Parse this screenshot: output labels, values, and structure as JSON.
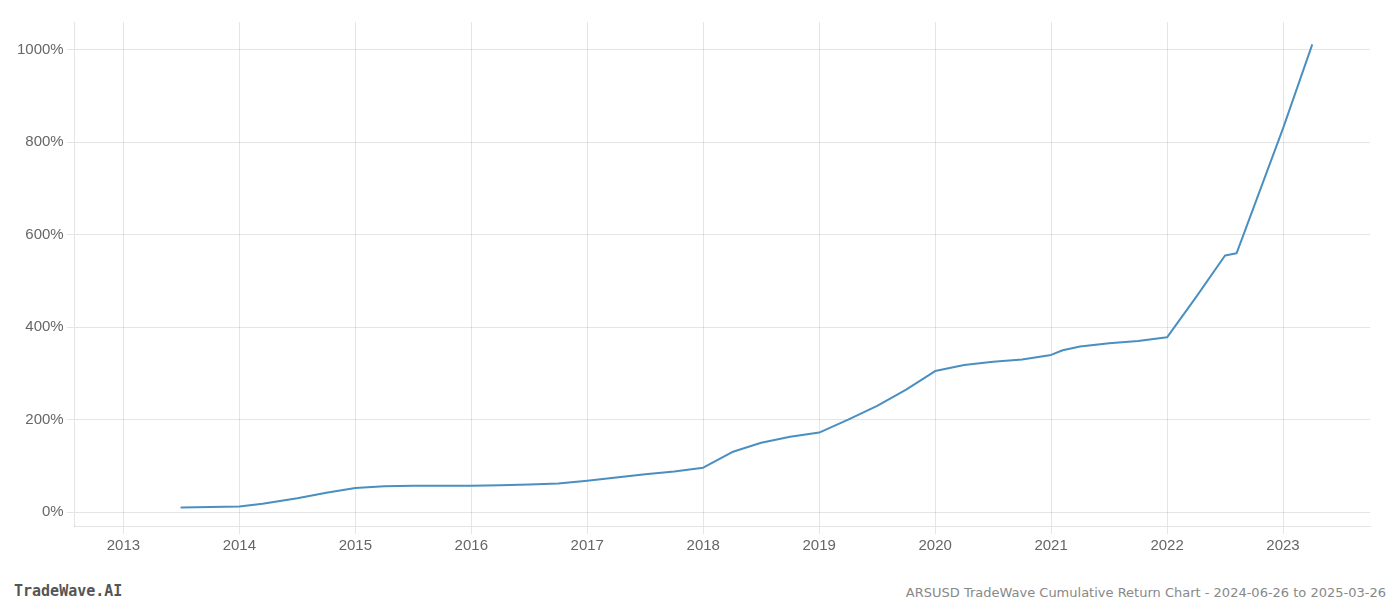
{
  "chart_data": {
    "type": "line",
    "title": "ARSUSD TradeWave Cumulative Return Chart - 2024-06-26 to 2025-03-26",
    "annotations": [
      "TradeWave.AI"
    ],
    "x": [
      2013.5,
      2014.0,
      2014.2,
      2014.5,
      2014.75,
      2015.0,
      2015.25,
      2015.5,
      2015.75,
      2016.0,
      2016.25,
      2016.5,
      2016.75,
      2017.0,
      2017.25,
      2017.5,
      2017.75,
      2018.0,
      2018.25,
      2018.5,
      2018.75,
      2019.0,
      2019.25,
      2019.5,
      2019.75,
      2020.0,
      2020.25,
      2020.5,
      2020.75,
      2021.0,
      2021.1,
      2021.25,
      2021.5,
      2021.75,
      2022.0,
      2022.25,
      2022.5,
      2022.6,
      2023.0,
      2023.25
    ],
    "values": [
      10,
      12,
      18,
      30,
      42,
      52,
      56,
      57,
      57,
      57,
      58,
      60,
      62,
      68,
      75,
      82,
      88,
      96,
      130,
      150,
      163,
      172,
      200,
      230,
      265,
      305,
      318,
      325,
      330,
      340,
      350,
      358,
      365,
      370,
      378,
      465,
      555,
      560,
      830,
      1010
    ],
    "color": "#4a8fc0",
    "xlim": [
      2012.58,
      2023.75
    ],
    "xticks": [
      2013,
      2014,
      2015,
      2016,
      2017,
      2018,
      2019,
      2020,
      2021,
      2022,
      2023
    ],
    "ylim": [
      -30,
      1060
    ],
    "yticks": [
      {
        "value": 0,
        "label": "0%"
      },
      {
        "value": 200,
        "label": "200%"
      },
      {
        "value": 400,
        "label": "400%"
      },
      {
        "value": 600,
        "label": "600%"
      },
      {
        "value": 800,
        "label": "800%"
      },
      {
        "value": 1000,
        "label": "1000%"
      }
    ],
    "grid": true
  }
}
